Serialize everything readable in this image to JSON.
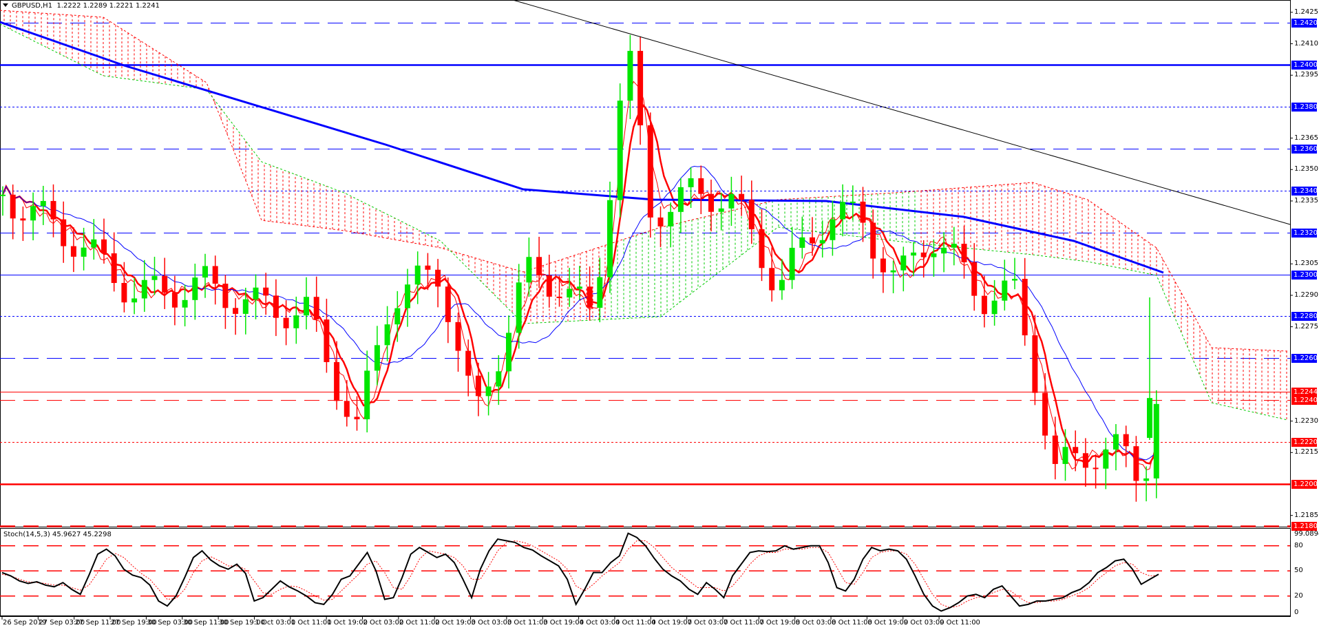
{
  "header": {
    "symbol": "GBPUSD,H1",
    "ohlc": "1.2222 1.2289 1.2221 1.2241"
  },
  "indicator": {
    "label": "Stoch(14,5,3) 45.9627 45.2298",
    "max_label": "99.0894",
    "levels": [
      "80",
      "50",
      "20",
      "0"
    ]
  },
  "colors": {
    "bull_candle": "#00e600",
    "bear_candle": "#ff0000",
    "level_blue": "#0000ff",
    "level_red": "#ff0000",
    "cloud_bear": "#ff0000",
    "cloud_bull": "#00cc00"
  },
  "price_axis": {
    "ticks": [
      "1.2425",
      "1.2410",
      "1.2395",
      "1.2365",
      "1.2350",
      "1.2335",
      "1.2305",
      "1.2290",
      "1.2275",
      "1.2230",
      "1.2215",
      "1.2185"
    ],
    "tags": [
      {
        "label": "1.2420",
        "color": "blue"
      },
      {
        "label": "1.2400",
        "color": "blue"
      },
      {
        "label": "1.2380",
        "color": "blue"
      },
      {
        "label": "1.2360",
        "color": "blue"
      },
      {
        "label": "1.2340",
        "color": "blue"
      },
      {
        "label": "1.2320",
        "color": "blue"
      },
      {
        "label": "1.2300",
        "color": "blue"
      },
      {
        "label": "1.2280",
        "color": "blue"
      },
      {
        "label": "1.2260",
        "color": "blue"
      },
      {
        "label": "1.2244",
        "color": "red"
      },
      {
        "label": "1.2240",
        "color": "red"
      },
      {
        "label": "1.2220",
        "color": "red"
      },
      {
        "label": "1.2200",
        "color": "red"
      },
      {
        "label": "1.2180",
        "color": "red"
      }
    ]
  },
  "time_axis": {
    "labels": [
      "26 Sep 2019",
      "27 Sep 03:00",
      "27 Sep 11:00",
      "27 Sep 19:00",
      "30 Sep 03:00",
      "30 Sep 11:00",
      "30 Sep 19:00",
      "1 Oct 03:00",
      "1 Oct 11:00",
      "1 Oct 19:00",
      "2 Oct 03:00",
      "2 Oct 11:00",
      "2 Oct 19:00",
      "3 Oct 03:00",
      "3 Oct 11:00",
      "3 Oct 19:00",
      "4 Oct 03:00",
      "4 Oct 11:00",
      "4 Oct 19:00",
      "7 Oct 03:00",
      "7 Oct 11:00",
      "7 Oct 19:00",
      "8 Oct 03:00",
      "8 Oct 11:00",
      "8 Oct 19:00",
      "9 Oct 03:00",
      "9 Oct 11:00"
    ]
  },
  "chart_data": {
    "type": "candlestick",
    "title": "GBPUSD,H1",
    "ylim": [
      1.2175,
      1.243
    ],
    "horizontal_levels": [
      {
        "price": 1.242,
        "style": "dashed",
        "color": "blue"
      },
      {
        "price": 1.24,
        "style": "solid-thick",
        "color": "blue"
      },
      {
        "price": 1.238,
        "style": "dotted",
        "color": "blue"
      },
      {
        "price": 1.236,
        "style": "dashed",
        "color": "blue"
      },
      {
        "price": 1.234,
        "style": "dotted",
        "color": "blue"
      },
      {
        "price": 1.232,
        "style": "dashed",
        "color": "blue"
      },
      {
        "price": 1.23,
        "style": "solid",
        "color": "blue"
      },
      {
        "price": 1.228,
        "style": "dotted",
        "color": "blue"
      },
      {
        "price": 1.226,
        "style": "dashed",
        "color": "blue"
      },
      {
        "price": 1.2244,
        "style": "solid",
        "color": "red"
      },
      {
        "price": 1.224,
        "style": "dashed",
        "color": "red"
      },
      {
        "price": 1.222,
        "style": "dotted",
        "color": "red"
      },
      {
        "price": 1.22,
        "style": "solid-thick",
        "color": "red"
      },
      {
        "price": 1.218,
        "style": "dashed-thick",
        "color": "red"
      }
    ],
    "last_bar": {
      "open": 1.2222,
      "high": 1.2289,
      "low": 1.2221,
      "close": 1.2241
    },
    "trendline": {
      "from": [
        745,
        0
      ],
      "to": [
        1874,
        326
      ]
    },
    "stochastic": {
      "k": 45.9627,
      "d": 45.2298,
      "levels": [
        80,
        50,
        20
      ],
      "k_series": [
        48,
        44,
        38,
        35,
        37,
        33,
        31,
        36,
        28,
        22,
        45,
        70,
        76,
        68,
        52,
        45,
        42,
        33,
        14,
        8,
        20,
        42,
        66,
        74,
        63,
        56,
        52,
        58,
        47,
        14,
        18,
        28,
        38,
        31,
        26,
        20,
        12,
        10,
        22,
        40,
        44,
        58,
        72,
        50,
        16,
        18,
        42,
        70,
        78,
        72,
        66,
        70,
        60,
        40,
        18,
        52,
        74,
        88,
        86,
        84,
        78,
        75,
        68,
        62,
        56,
        40,
        10,
        28,
        48,
        48,
        60,
        68,
        95,
        90,
        80,
        65,
        52,
        44,
        38,
        28,
        22,
        36,
        28,
        18,
        44,
        58,
        72,
        74,
        73,
        74,
        80,
        76,
        78,
        80,
        80,
        60,
        30,
        26,
        40,
        64,
        78,
        74,
        76,
        74,
        64,
        44,
        22,
        8,
        2,
        6,
        12,
        20,
        22,
        18,
        28,
        32,
        20,
        8,
        10,
        14,
        14,
        16,
        18,
        24,
        28,
        36,
        48,
        54,
        62,
        64,
        52,
        34,
        40,
        46
      ],
      "d_series": [
        46,
        44,
        40,
        37,
        36,
        35,
        33,
        33,
        30,
        27,
        33,
        48,
        64,
        71,
        66,
        56,
        47,
        40,
        28,
        16,
        17,
        28,
        48,
        62,
        67,
        62,
        56,
        56,
        52,
        38,
        24,
        22,
        28,
        32,
        31,
        26,
        20,
        15,
        16,
        26,
        36,
        46,
        58,
        62,
        48,
        30,
        28,
        44,
        64,
        74,
        72,
        70,
        66,
        56,
        40,
        40,
        56,
        74,
        84,
        86,
        84,
        80,
        74,
        68,
        62,
        52,
        32,
        26,
        34,
        44,
        52,
        60,
        76,
        86,
        86,
        78,
        66,
        54,
        46,
        38,
        30,
        30,
        30,
        26,
        32,
        44,
        58,
        68,
        72,
        72,
        76,
        76,
        76,
        78,
        78,
        72,
        54,
        36,
        34,
        48,
        66,
        72,
        74,
        74,
        70,
        58,
        40,
        22,
        10,
        6,
        8,
        14,
        18,
        20,
        24,
        28,
        26,
        18,
        12,
        12,
        14,
        14,
        16,
        20,
        24,
        30,
        40,
        48,
        56,
        60,
        58,
        48,
        44,
        45
      ]
    }
  }
}
